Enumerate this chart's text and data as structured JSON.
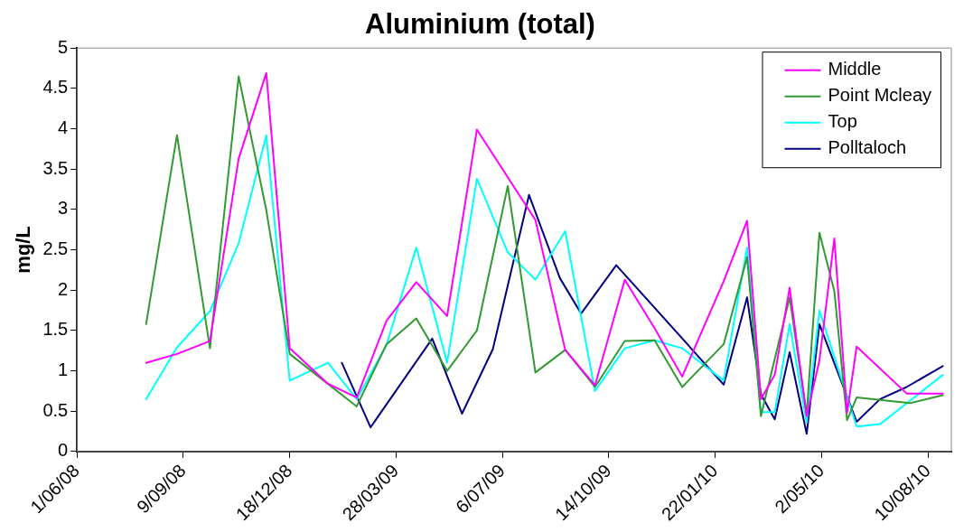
{
  "chart_data": {
    "type": "line",
    "title": "Aluminium (total)",
    "ylabel": "mg/L",
    "xlim": [
      "2008-06-01",
      "2010-09-01"
    ],
    "xticks": [
      {
        "value": "2008-06-01",
        "label": "1/06/08"
      },
      {
        "value": "2008-09-09",
        "label": "9/09/08"
      },
      {
        "value": "2008-12-18",
        "label": "18/12/08"
      },
      {
        "value": "2009-03-28",
        "label": "28/03/09"
      },
      {
        "value": "2009-07-06",
        "label": "6/07/09"
      },
      {
        "value": "2009-10-14",
        "label": "14/10/09"
      },
      {
        "value": "2010-01-22",
        "label": "22/01/10"
      },
      {
        "value": "2010-05-02",
        "label": "2/05/10"
      },
      {
        "value": "2010-08-10",
        "label": "10/08/10"
      }
    ],
    "ylim": [
      0,
      5
    ],
    "yticks": [
      0,
      0.5,
      1,
      1.5,
      2,
      2.5,
      3,
      3.5,
      4,
      4.5,
      5
    ],
    "grid": false,
    "legend": "top right",
    "series": [
      {
        "name": "Middle",
        "color": "#ff00ff",
        "x": [
          "2008-08-05",
          "2008-09-03",
          "2008-10-04",
          "2008-10-31",
          "2008-11-26",
          "2008-12-18",
          "2009-01-23",
          "2009-02-19",
          "2009-03-19",
          "2009-04-16",
          "2009-05-15",
          "2009-06-12",
          "2009-08-06",
          "2009-09-03",
          "2009-10-01",
          "2009-10-29",
          "2009-11-26",
          "2009-12-22",
          "2010-01-30",
          "2010-02-21",
          "2010-03-06",
          "2010-03-19",
          "2010-04-02",
          "2010-04-18",
          "2010-04-30",
          "2010-05-14",
          "2010-05-26",
          "2010-06-04",
          "2010-07-21",
          "2010-08-24"
        ],
        "values": [
          1.1,
          1.21,
          1.37,
          3.63,
          4.69,
          1.28,
          0.84,
          0.67,
          1.62,
          2.1,
          1.68,
          3.99,
          2.87,
          1.26,
          0.82,
          2.13,
          1.53,
          0.93,
          2.11,
          2.86,
          0.65,
          0.95,
          2.03,
          0.44,
          1.13,
          2.64,
          0.48,
          1.3,
          0.72,
          0.72
        ]
      },
      {
        "name": "Point Mcleay",
        "color": "#339933",
        "x": [
          "2008-08-05",
          "2008-09-03",
          "2008-10-04",
          "2008-10-31",
          "2008-11-26",
          "2008-12-18",
          "2009-02-19",
          "2009-03-19",
          "2009-04-16",
          "2009-05-15",
          "2009-06-12",
          "2009-07-11",
          "2009-08-06",
          "2009-09-03",
          "2009-10-01",
          "2009-10-29",
          "2009-11-26",
          "2009-12-22",
          "2010-01-30",
          "2010-02-21",
          "2010-03-06",
          "2010-04-02",
          "2010-04-18",
          "2010-04-30",
          "2010-05-14",
          "2010-05-26",
          "2010-06-04",
          "2010-07-24",
          "2010-08-24"
        ],
        "values": [
          1.58,
          3.92,
          1.28,
          4.65,
          2.99,
          1.21,
          0.56,
          1.33,
          1.65,
          1.0,
          1.5,
          3.29,
          0.98,
          1.26,
          0.8,
          1.37,
          1.38,
          0.8,
          1.33,
          2.41,
          0.44,
          1.91,
          0.46,
          2.71,
          1.99,
          0.39,
          0.67,
          0.6,
          0.7
        ]
      },
      {
        "name": "Top",
        "color": "#00ffff",
        "x": [
          "2008-08-05",
          "2008-09-03",
          "2008-10-04",
          "2008-10-31",
          "2008-11-26",
          "2008-12-18",
          "2009-01-23",
          "2009-02-19",
          "2009-03-19",
          "2009-04-16",
          "2009-05-15",
          "2009-06-12",
          "2009-07-11",
          "2009-08-06",
          "2009-09-03",
          "2009-10-01",
          "2009-10-29",
          "2009-11-26",
          "2009-12-22",
          "2010-01-30",
          "2010-02-21",
          "2010-03-06",
          "2010-03-19",
          "2010-04-02",
          "2010-04-18",
          "2010-04-30",
          "2010-06-04",
          "2010-06-26",
          "2010-08-24"
        ],
        "values": [
          0.65,
          1.29,
          1.74,
          2.58,
          3.92,
          0.88,
          1.1,
          0.65,
          1.32,
          2.53,
          1.1,
          3.38,
          2.47,
          2.13,
          2.73,
          0.75,
          1.28,
          1.38,
          1.28,
          0.88,
          2.53,
          0.49,
          0.49,
          1.58,
          0.36,
          1.75,
          0.31,
          0.34,
          0.95
        ]
      },
      {
        "name": "Polltaloch",
        "color": "#000080",
        "x": [
          "2009-02-05",
          "2009-03-04",
          "2009-05-01",
          "2009-05-29",
          "2009-06-27",
          "2009-07-31",
          "2009-08-29",
          "2009-09-18",
          "2009-10-21",
          "2010-01-30",
          "2010-02-21",
          "2010-03-06",
          "2010-03-19",
          "2010-04-02",
          "2010-04-18",
          "2010-04-30",
          "2010-06-04",
          "2010-06-26",
          "2010-07-21",
          "2010-08-24"
        ],
        "values": [
          1.1,
          0.3,
          1.4,
          0.47,
          1.27,
          3.18,
          2.15,
          1.71,
          2.31,
          0.83,
          1.91,
          0.71,
          0.4,
          1.23,
          0.22,
          1.58,
          0.37,
          0.65,
          0.8,
          1.06
        ]
      }
    ]
  }
}
